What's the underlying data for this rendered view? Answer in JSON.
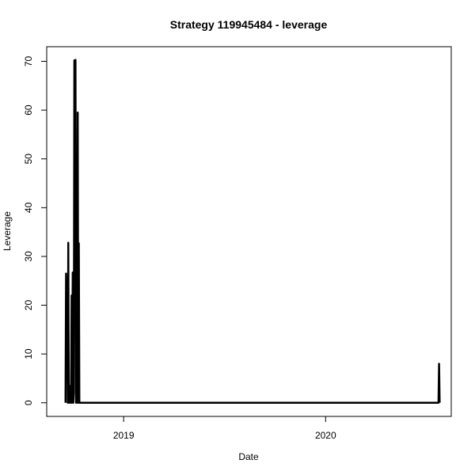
{
  "chart_data": {
    "type": "line",
    "title": "Strategy 119945484 - leverage",
    "xlabel": "Date",
    "ylabel": "Leverage",
    "x_axis": {
      "type": "date",
      "ticks": [
        {
          "date": "2019-01-01",
          "label": "2019"
        },
        {
          "date": "2020-01-01",
          "label": "2020"
        }
      ],
      "range": [
        "2018-08-15",
        "2020-08-15"
      ]
    },
    "y_axis": {
      "range": [
        -2.8,
        73
      ],
      "ticks": [
        0,
        10,
        20,
        30,
        40,
        50,
        60,
        70
      ]
    },
    "grid": false,
    "series": [
      {
        "color": "#000000",
        "points": [
          [
            "2018-09-18",
            0
          ],
          [
            "2018-09-19",
            26.5
          ],
          [
            "2018-09-20",
            15
          ],
          [
            "2018-09-21",
            25
          ],
          [
            "2018-09-22",
            0
          ],
          [
            "2018-09-23",
            32.8
          ],
          [
            "2018-09-24",
            0
          ],
          [
            "2018-09-25",
            3.5
          ],
          [
            "2018-09-26",
            0
          ],
          [
            "2018-09-27",
            3
          ],
          [
            "2018-09-28",
            0
          ],
          [
            "2018-09-29",
            22
          ],
          [
            "2018-09-30",
            0
          ],
          [
            "2018-10-01",
            26.7
          ],
          [
            "2018-10-02",
            0
          ],
          [
            "2018-10-03",
            2
          ],
          [
            "2018-10-04",
            70.2
          ],
          [
            "2018-10-05",
            51
          ],
          [
            "2018-10-06",
            70.3
          ],
          [
            "2018-10-07",
            0
          ],
          [
            "2018-10-08",
            25
          ],
          [
            "2018-10-09",
            0
          ],
          [
            "2018-10-10",
            59.5
          ],
          [
            "2018-10-11",
            0
          ],
          [
            "2018-10-12",
            32.7
          ],
          [
            "2018-10-13",
            0
          ],
          [
            "2018-10-14",
            0
          ],
          [
            "2020-07-23",
            0
          ],
          [
            "2020-07-24",
            8
          ],
          [
            "2020-07-25",
            0
          ]
        ]
      }
    ]
  }
}
